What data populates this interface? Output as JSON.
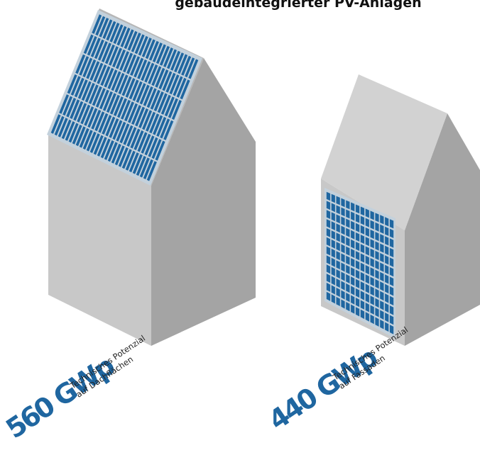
{
  "header": {
    "title": "gebäudeintegrierter PV-Anlagen"
  },
  "colors": {
    "wall_front": "#c8c8c8",
    "wall_side": "#a4a4a4",
    "roof_light": "#d2d2d2",
    "roof_dark": "#b7b7b7",
    "panel_frame": "#c3d1dc",
    "panel_cell": "#1f66a0",
    "panel_grid": "#dfe7ee",
    "accent_text": "#1f66a0"
  },
  "houses": [
    {
      "id": "roof",
      "value": "560 GWp",
      "caption_line1": "Technisches Potenzial",
      "caption_line2": "auf Dachflächen"
    },
    {
      "id": "facade",
      "value": "440 GWp",
      "caption_line1": "Technisches Potenzial",
      "caption_line2": "auf Fassaden"
    }
  ]
}
